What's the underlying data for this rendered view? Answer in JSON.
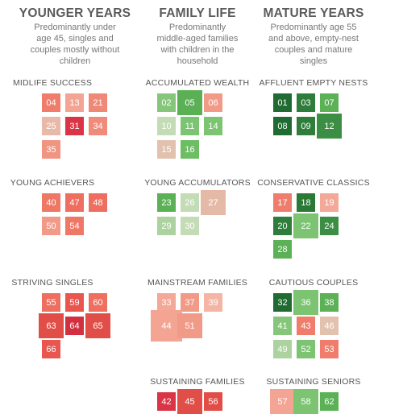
{
  "columns": [
    {
      "title": "YOUNGER YEARS",
      "desc": [
        "Predominantly under",
        "age 45, singles and",
        "couples mostly without",
        "children"
      ]
    },
    {
      "title": "FAMILY LIFE",
      "desc": [
        "Predominantly",
        "middle-aged families",
        "with children in the",
        "household"
      ]
    },
    {
      "title": "MATURE YEARS",
      "desc": [
        "Predominantly age 55",
        "and above, empty-nest",
        "couples and mature",
        "singles"
      ]
    }
  ],
  "chart_data": {
    "type": "scatter",
    "groups": [
      {
        "name": "MIDLIFE SUCCESS",
        "col": 0,
        "row": 0,
        "cells": [
          {
            "label": "04",
            "color": "#f07d6c",
            "size": 1
          },
          {
            "label": "13",
            "color": "#f4a493",
            "size": 1
          },
          {
            "label": "21",
            "color": "#f08878",
            "size": 1
          },
          {
            "label": "25",
            "color": "#e8b9a8",
            "size": 1
          },
          {
            "label": "31",
            "color": "#d93546",
            "size": 1
          },
          {
            "label": "34",
            "color": "#f08a7a",
            "size": 1
          },
          {
            "label": "35",
            "color": "#f19482",
            "size": 1
          }
        ]
      },
      {
        "name": "ACCUMULATED WEALTH",
        "col": 1,
        "row": 0,
        "cells": [
          {
            "label": "02",
            "color": "#86c67a",
            "size": 1
          },
          {
            "label": "05",
            "color": "#5bb055",
            "size": 2
          },
          {
            "label": "06",
            "color": "#f29a88",
            "size": 1
          },
          {
            "label": "10",
            "color": "#c4dcb6",
            "size": 1
          },
          {
            "label": "11",
            "color": "#7cc472",
            "size": 1
          },
          {
            "label": "14",
            "color": "#7cc472",
            "size": 1
          },
          {
            "label": "15",
            "color": "#e2c1ae",
            "size": 1
          },
          {
            "label": "16",
            "color": "#6cbd64",
            "size": 1
          }
        ]
      },
      {
        "name": "AFFLUENT EMPTY NESTS",
        "col": 2,
        "row": 0,
        "cells": [
          {
            "label": "01",
            "color": "#1f6b32",
            "size": 1
          },
          {
            "label": "03",
            "color": "#2e7d3a",
            "size": 1
          },
          {
            "label": "07",
            "color": "#5cb156",
            "size": 1
          },
          {
            "label": "08",
            "color": "#1f6b32",
            "size": 1
          },
          {
            "label": "09",
            "color": "#2e7d3a",
            "size": 1
          },
          {
            "label": "12",
            "color": "#3c8e44",
            "size": 2
          }
        ]
      },
      {
        "name": "YOUNG ACHIEVERS",
        "col": 0,
        "row": 1,
        "cells": [
          {
            "label": "40",
            "color": "#ef7766",
            "size": 1
          },
          {
            "label": "47",
            "color": "#ee6f5f",
            "size": 1
          },
          {
            "label": "48",
            "color": "#ee6f5f",
            "size": 1
          },
          {
            "label": "50",
            "color": "#f29a88",
            "size": 1
          },
          {
            "label": "54",
            "color": "#ef7766",
            "size": 1
          }
        ]
      },
      {
        "name": "YOUNG ACCUMULATORS",
        "col": 1,
        "row": 1,
        "cells": [
          {
            "label": "23",
            "color": "#5cb156",
            "size": 1
          },
          {
            "label": "26",
            "color": "#c4dcb6",
            "size": 1
          },
          {
            "label": "27",
            "color": "#e4baa6",
            "size": 2
          },
          {
            "label": "29",
            "color": "#acd2a0",
            "size": 1
          },
          {
            "label": "30",
            "color": "#c4dcb6",
            "size": 1
          }
        ]
      },
      {
        "name": "CONSERVATIVE CLASSICS",
        "col": 2,
        "row": 1,
        "cells": [
          {
            "label": "17",
            "color": "#f07d6c",
            "size": 1
          },
          {
            "label": "18",
            "color": "#2a7a36",
            "size": 1
          },
          {
            "label": "19",
            "color": "#f4a898",
            "size": 1
          },
          {
            "label": "20",
            "color": "#2e7d3a",
            "size": 1
          },
          {
            "label": "22",
            "color": "#7cc472",
            "size": 2
          },
          {
            "label": "24",
            "color": "#3c8e44",
            "size": 1
          },
          {
            "label": "28",
            "color": "#5cb156",
            "size": 1
          }
        ]
      },
      {
        "name": "STRIVING SINGLES",
        "col": 0,
        "row": 2,
        "cells": [
          {
            "label": "55",
            "color": "#ee6f5f",
            "size": 1
          },
          {
            "label": "59",
            "color": "#e9564f",
            "size": 1
          },
          {
            "label": "60",
            "color": "#ee6f5f",
            "size": 1
          },
          {
            "label": "63",
            "color": "#e14e48",
            "size": 2
          },
          {
            "label": "64",
            "color": "#d22f40",
            "size": 1
          },
          {
            "label": "65",
            "color": "#e14e48",
            "size": 2
          },
          {
            "label": "66",
            "color": "#e9564f",
            "size": 1
          }
        ]
      },
      {
        "name": "MAINSTREAM FAMILIES",
        "col": 1,
        "row": 2,
        "cells": [
          {
            "label": "33",
            "color": "#f4a898",
            "size": 1
          },
          {
            "label": "37",
            "color": "#f29a88",
            "size": 1
          },
          {
            "label": "39",
            "color": "#f5b5a4",
            "size": 1
          },
          {
            "label": "44",
            "color": "#f4a493",
            "size": 3
          },
          {
            "label": "51",
            "color": "#f29a88",
            "size": 2
          }
        ]
      },
      {
        "name": "CAUTIOUS COUPLES",
        "col": 2,
        "row": 2,
        "cells": [
          {
            "label": "32",
            "color": "#1f6b32",
            "size": 1
          },
          {
            "label": "36",
            "color": "#7cc472",
            "size": 2
          },
          {
            "label": "38",
            "color": "#5cb156",
            "size": 1
          },
          {
            "label": "41",
            "color": "#86c67a",
            "size": 1
          },
          {
            "label": "43",
            "color": "#f07d6c",
            "size": 1
          },
          {
            "label": "46",
            "color": "#e2c1ae",
            "size": 1
          },
          {
            "label": "49",
            "color": "#acd2a0",
            "size": 1
          },
          {
            "label": "52",
            "color": "#7cc472",
            "size": 1
          },
          {
            "label": "53",
            "color": "#f07d6c",
            "size": 1
          }
        ]
      },
      {
        "name": "SUSTAINING FAMILIES",
        "col": 1,
        "row": 3,
        "cells": [
          {
            "label": "42",
            "color": "#d93546",
            "size": 1
          },
          {
            "label": "45",
            "color": "#e14e48",
            "size": 2
          },
          {
            "label": "56",
            "color": "#e14e48",
            "size": 1
          }
        ]
      },
      {
        "name": "SUSTAINING SENIORS",
        "col": 2,
        "row": 3,
        "cells": [
          {
            "label": "57",
            "color": "#f4a493",
            "size": 2
          },
          {
            "label": "58",
            "color": "#7cc472",
            "size": 2
          },
          {
            "label": "62",
            "color": "#5cb156",
            "size": 1
          }
        ]
      }
    ]
  }
}
